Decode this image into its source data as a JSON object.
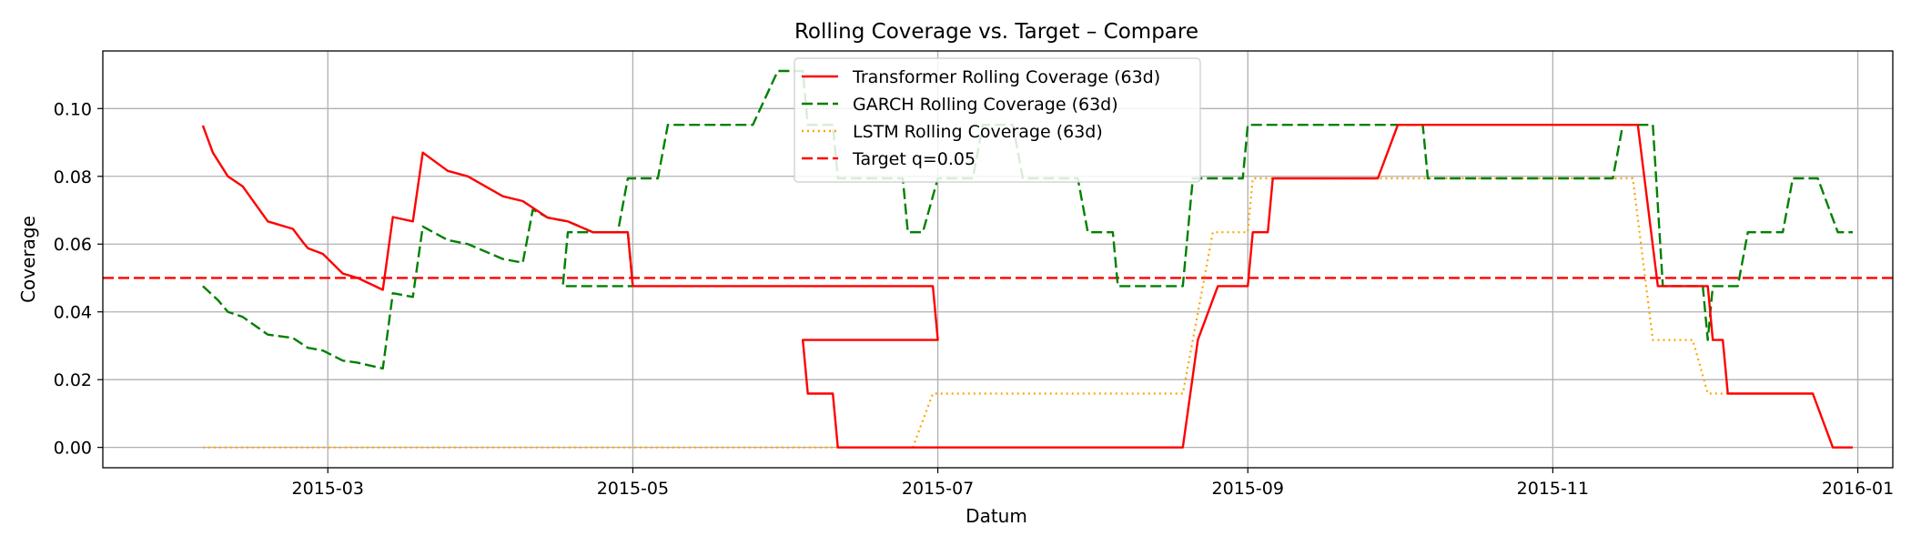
{
  "chart_data": {
    "type": "line",
    "title": "Rolling Coverage vs. Target – Compare",
    "xlabel": "Datum",
    "ylabel": "Coverage",
    "xlim": [
      "2015-01-15",
      "2016-01-08"
    ],
    "ylim": [
      -0.006,
      0.117
    ],
    "grid": true,
    "legend_position": "top-center",
    "x_ticks": [
      "2015-03-01",
      "2015-05-01",
      "2015-07-01",
      "2015-09-01",
      "2015-11-01",
      "2016-01-01"
    ],
    "x_tick_labels": [
      "2015-03",
      "2015-05",
      "2015-07",
      "2015-09",
      "2015-11",
      "2016-01"
    ],
    "y_ticks": [
      0.0,
      0.02,
      0.04,
      0.06,
      0.08,
      0.1
    ],
    "y_tick_labels": [
      "0.00",
      "0.02",
      "0.04",
      "0.06",
      "0.08",
      "0.10"
    ],
    "target": {
      "name": "Target q=0.05",
      "value": 0.05,
      "color": "#ff0000",
      "style": "dashed"
    },
    "series": [
      {
        "name": "Transformer Rolling Coverage (63d)",
        "color": "#ff0000",
        "style": "solid",
        "points": [
          [
            "2015-02-04",
            0.095
          ],
          [
            "2015-02-05",
            0.091
          ],
          [
            "2015-02-06",
            0.087
          ],
          [
            "2015-02-09",
            0.08
          ],
          [
            "2015-02-12",
            0.077
          ],
          [
            "2015-02-17",
            0.0667
          ],
          [
            "2015-02-22",
            0.0645
          ],
          [
            "2015-02-24",
            0.0606
          ],
          [
            "2015-02-25",
            0.0588
          ],
          [
            "2015-02-28",
            0.0571
          ],
          [
            "2015-03-04",
            0.0513
          ],
          [
            "2015-03-07",
            0.05
          ],
          [
            "2015-03-12",
            0.0465
          ],
          [
            "2015-03-14",
            0.068
          ],
          [
            "2015-03-18",
            0.0667
          ],
          [
            "2015-03-20",
            0.087
          ],
          [
            "2015-03-25",
            0.0816
          ],
          [
            "2015-03-29",
            0.08
          ],
          [
            "2015-04-05",
            0.0741
          ],
          [
            "2015-04-09",
            0.0727
          ],
          [
            "2015-04-14",
            0.0678
          ],
          [
            "2015-04-18",
            0.0667
          ],
          [
            "2015-04-23",
            0.0635
          ],
          [
            "2015-04-30",
            0.0635
          ],
          [
            "2015-05-01",
            0.0476
          ],
          [
            "2015-05-04",
            0.0476
          ],
          [
            "2015-06-30",
            0.0476
          ],
          [
            "2015-07-01",
            0.0317
          ],
          [
            "2015-06-04",
            0.0317
          ],
          [
            "2015-06-05",
            0.0159
          ],
          [
            "2015-06-10",
            0.0159
          ],
          [
            "2015-06-11",
            0.0
          ],
          [
            "2015-08-19",
            0.0
          ],
          [
            "2015-08-22",
            0.0317
          ],
          [
            "2015-08-26",
            0.0476
          ],
          [
            "2015-09-01",
            0.0476
          ],
          [
            "2015-09-02",
            0.0635
          ],
          [
            "2015-09-05",
            0.0635
          ],
          [
            "2015-09-06",
            0.0794
          ],
          [
            "2015-09-27",
            0.0794
          ],
          [
            "2015-10-01",
            0.0952
          ],
          [
            "2015-11-18",
            0.0952
          ],
          [
            "2015-11-22",
            0.0476
          ],
          [
            "2015-12-02",
            0.0476
          ],
          [
            "2015-12-03",
            0.0317
          ],
          [
            "2015-12-05",
            0.0317
          ],
          [
            "2015-12-06",
            0.0159
          ],
          [
            "2015-12-23",
            0.0159
          ],
          [
            "2015-12-27",
            0.0
          ],
          [
            "2015-12-31",
            0.0
          ]
        ]
      },
      {
        "name": "GARCH Rolling Coverage (63d)",
        "color": "#008000",
        "style": "dashed",
        "points": [
          [
            "2015-02-04",
            0.0476
          ],
          [
            "2015-02-07",
            0.0435
          ],
          [
            "2015-02-09",
            0.04
          ],
          [
            "2015-02-12",
            0.0385
          ],
          [
            "2015-02-17",
            0.0333
          ],
          [
            "2015-02-22",
            0.0323
          ],
          [
            "2015-02-25",
            0.0294
          ],
          [
            "2015-02-28",
            0.0286
          ],
          [
            "2015-03-04",
            0.0256
          ],
          [
            "2015-03-07",
            0.025
          ],
          [
            "2015-03-12",
            0.0233
          ],
          [
            "2015-03-14",
            0.0455
          ],
          [
            "2015-03-18",
            0.0444
          ],
          [
            "2015-03-20",
            0.0652
          ],
          [
            "2015-03-25",
            0.0612
          ],
          [
            "2015-03-29",
            0.06
          ],
          [
            "2015-04-05",
            0.0556
          ],
          [
            "2015-04-09",
            0.0545
          ],
          [
            "2015-04-11",
            0.0702
          ],
          [
            "2015-04-14",
            0.0678
          ],
          [
            "2015-04-18",
            0.0667
          ],
          [
            "2015-04-23",
            0.0635
          ],
          [
            "2015-04-30",
            0.0635
          ],
          [
            "2015-05-01",
            0.0476
          ],
          [
            "2015-04-17",
            0.0476
          ],
          [
            "2015-04-18",
            0.0635
          ],
          [
            "2015-04-28",
            0.0635
          ],
          [
            "2015-04-30",
            0.0794
          ],
          [
            "2015-05-06",
            0.0794
          ],
          [
            "2015-05-08",
            0.0952
          ],
          [
            "2015-05-25",
            0.0952
          ],
          [
            "2015-05-30",
            0.1111
          ],
          [
            "2015-06-04",
            0.1111
          ],
          [
            "2015-06-05",
            0.0952
          ],
          [
            "2015-06-10",
            0.0952
          ],
          [
            "2015-06-11",
            0.0794
          ],
          [
            "2015-06-24",
            0.0794
          ],
          [
            "2015-06-25",
            0.0635
          ],
          [
            "2015-06-28",
            0.0635
          ],
          [
            "2015-07-01",
            0.0794
          ],
          [
            "2015-07-08",
            0.0794
          ],
          [
            "2015-07-10",
            0.0952
          ],
          [
            "2015-07-16",
            0.0952
          ],
          [
            "2015-07-18",
            0.0794
          ],
          [
            "2015-07-29",
            0.0794
          ],
          [
            "2015-07-31",
            0.0635
          ],
          [
            "2015-08-05",
            0.0635
          ],
          [
            "2015-08-06",
            0.0476
          ],
          [
            "2015-08-19",
            0.0476
          ],
          [
            "2015-08-21",
            0.0794
          ],
          [
            "2015-08-31",
            0.0794
          ],
          [
            "2015-09-01",
            0.0952
          ],
          [
            "2015-09-25",
            0.0952
          ],
          [
            "2015-10-06",
            0.0952
          ],
          [
            "2015-10-07",
            0.0794
          ],
          [
            "2015-11-13",
            0.0794
          ],
          [
            "2015-11-15",
            0.0952
          ],
          [
            "2015-11-21",
            0.0952
          ],
          [
            "2015-11-23",
            0.0476
          ],
          [
            "2015-12-01",
            0.0476
          ],
          [
            "2015-12-02",
            0.0317
          ],
          [
            "2015-12-03",
            0.0476
          ],
          [
            "2015-12-08",
            0.0476
          ],
          [
            "2015-12-10",
            0.0635
          ],
          [
            "2015-12-17",
            0.0635
          ],
          [
            "2015-12-19",
            0.0794
          ],
          [
            "2015-12-24",
            0.0794
          ],
          [
            "2015-12-28",
            0.0635
          ],
          [
            "2015-12-31",
            0.0635
          ]
        ]
      },
      {
        "name": "LSTM Rolling Coverage (63d)",
        "color": "#ffa500",
        "style": "dotted",
        "points": [
          [
            "2015-02-04",
            0.0
          ],
          [
            "2015-06-26",
            0.0
          ],
          [
            "2015-06-30",
            0.0159
          ],
          [
            "2015-08-19",
            0.0159
          ],
          [
            "2015-08-23",
            0.0476
          ],
          [
            "2015-08-25",
            0.0635
          ],
          [
            "2015-09-01",
            0.0635
          ],
          [
            "2015-09-02",
            0.0794
          ],
          [
            "2015-11-17",
            0.0794
          ],
          [
            "2015-11-21",
            0.0317
          ],
          [
            "2015-11-29",
            0.0317
          ],
          [
            "2015-12-02",
            0.0159
          ],
          [
            "2015-12-23",
            0.0159
          ],
          [
            "2015-12-27",
            0.0
          ],
          [
            "2015-12-31",
            0.0
          ]
        ]
      }
    ]
  }
}
